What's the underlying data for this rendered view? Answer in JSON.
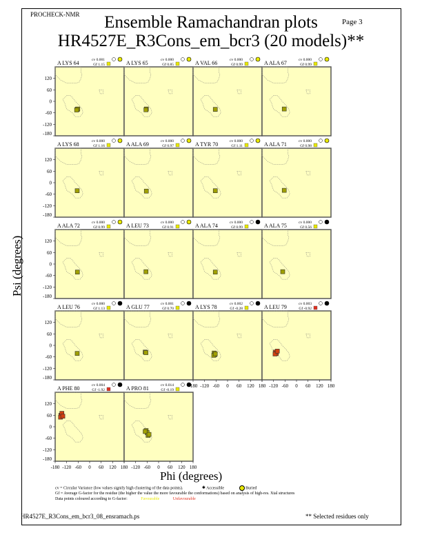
{
  "header": {
    "program": "PROCHECK-NMR",
    "page": "Page  3",
    "title": "Ensemble Ramachandran plots",
    "subtitle": "HR4527E_R3Cons_em_bcr3 (20 models)**"
  },
  "footer": {
    "filename": "HR4527E_R3Cons_em_bcr3_08_ensramach.ps",
    "note": "** Selected residues only"
  },
  "legend": {
    "cv_line": "cv = Circular Variance (low values signify high clustering of the data points).",
    "accessible": "Accessible",
    "buried": "Buried",
    "gf_line": "Gf = Average G-factor for the residue (the higher the value the more favourable the conformations) based on analysis of high-res. Xtal structures",
    "colour_line": "Data points coloured according to G-factor:",
    "favourable": "Favourable",
    "unfavourable": "Unfavourable"
  },
  "colors": {
    "panel_bg": "#ffffc0",
    "favourable": "#e8e800",
    "unfavourable": "#e03020",
    "point_fav": "#a0a000",
    "point_unfav": "#d04010"
  },
  "chart_data": {
    "type": "scatter",
    "title": "Ensemble Ramachandran plots",
    "xlabel": "Phi (degrees)",
    "ylabel": "Psi (degrees)",
    "xlim": [
      -180,
      180
    ],
    "ylim": [
      -180,
      180
    ],
    "xticks": [
      -180,
      -120,
      -60,
      0,
      60,
      120,
      180
    ],
    "yticks": [
      -180,
      -120,
      -60,
      0,
      60,
      120,
      180
    ],
    "panels": [
      {
        "label": "A LYS 64",
        "cv": "cv 0.001",
        "gf": "Gf  1.15",
        "access": "buried",
        "fav": true,
        "points": [
          [
            -65,
            -42
          ],
          [
            -62,
            -40
          ],
          [
            -68,
            -45
          ]
        ]
      },
      {
        "label": "A LYS 65",
        "cv": "cv 0.000",
        "gf": "Gf  0.85",
        "access": "buried",
        "fav": true,
        "points": [
          [
            -64,
            -40
          ],
          [
            -66,
            -44
          ]
        ]
      },
      {
        "label": "A VAL 66",
        "cv": "cv 0.000",
        "gf": "Gf  0.99",
        "access": "buried",
        "fav": true,
        "points": [
          [
            -64,
            -42
          ]
        ]
      },
      {
        "label": "A ALA 67",
        "cv": "cv 0.000",
        "gf": "Gf  0.99",
        "access": "buried",
        "fav": true,
        "points": [
          [
            -64,
            -40
          ]
        ]
      },
      {
        "label": "A LYS 68",
        "cv": "cv 0.000",
        "gf": "Gf  1.16",
        "access": "buried",
        "fav": true,
        "points": [
          [
            -65,
            -42
          ]
        ]
      },
      {
        "label": "A ALA 69",
        "cv": "cv 0.000",
        "gf": "Gf  0.97",
        "access": "buried",
        "fav": true,
        "points": [
          [
            -64,
            -44
          ]
        ]
      },
      {
        "label": "A TYR 70",
        "cv": "cv 0.000",
        "gf": "Gf  1.11",
        "access": "buried",
        "fav": true,
        "points": [
          [
            -64,
            -42
          ]
        ]
      },
      {
        "label": "A ALA 71",
        "cv": "cv 0.000",
        "gf": "Gf  0.98",
        "access": "buried",
        "fav": true,
        "points": [
          [
            -64,
            -40
          ]
        ]
      },
      {
        "label": "A ALA 72",
        "cv": "cv 0.000",
        "gf": "Gf  0.99",
        "access": "buried",
        "fav": true,
        "points": [
          [
            -64,
            -42
          ]
        ]
      },
      {
        "label": "A LEU 73",
        "cv": "cv 0.000",
        "gf": "Gf  0.91",
        "access": "buried",
        "fav": true,
        "points": [
          [
            -66,
            -40
          ]
        ]
      },
      {
        "label": "A ALA 74",
        "cv": "cv 0.000",
        "gf": "Gf  0.99",
        "access": "accessible",
        "fav": true,
        "points": [
          [
            -64,
            -42
          ]
        ]
      },
      {
        "label": "A ALA 75",
        "cv": "cv 0.000",
        "gf": "Gf  0.56",
        "access": "accessible",
        "fav": true,
        "points": [
          [
            -72,
            -40
          ]
        ]
      },
      {
        "label": "A LEU 76",
        "cv": "cv 0.000",
        "gf": "Gf  1.13",
        "access": "accessible",
        "fav": true,
        "points": [
          [
            -65,
            -42
          ]
        ]
      },
      {
        "label": "A GLU 77",
        "cv": "cv 0.001",
        "gf": "Gf  0.70",
        "access": "accessible",
        "fav": true,
        "points": [
          [
            -70,
            -35
          ],
          [
            -66,
            -38
          ]
        ]
      },
      {
        "label": "A LYS 78",
        "cv": "cv 0.002",
        "gf": "Gf -0.28",
        "access": "accessible",
        "fav": true,
        "points": [
          [
            -70,
            -40
          ],
          [
            -66,
            -48
          ],
          [
            -72,
            -52
          ],
          [
            -64,
            -44
          ]
        ]
      },
      {
        "label": "A LEU 79",
        "cv": "cv 0.003",
        "gf": "Gf -0.92",
        "access": "accessible",
        "fav": false,
        "points": [
          [
            -110,
            -35
          ],
          [
            -105,
            -42
          ],
          [
            -112,
            -45
          ],
          [
            -100,
            -30
          ]
        ]
      },
      {
        "label": "A PHE 80",
        "cv": "cv 0.004",
        "gf": "Gf -1.92",
        "access": "accessible",
        "fav": false,
        "points": [
          [
            -150,
            60
          ],
          [
            -145,
            70
          ],
          [
            -152,
            50
          ],
          [
            -140,
            55
          ]
        ]
      },
      {
        "label": "A PRO 81",
        "cv": "cv 0.014",
        "gf": "Gf -0.19",
        "access": "accessible",
        "fav": true,
        "points": [
          [
            -65,
            -20
          ],
          [
            -60,
            -30
          ],
          [
            -55,
            -45
          ],
          [
            -70,
            -25
          ],
          [
            -50,
            -40
          ]
        ]
      }
    ]
  }
}
